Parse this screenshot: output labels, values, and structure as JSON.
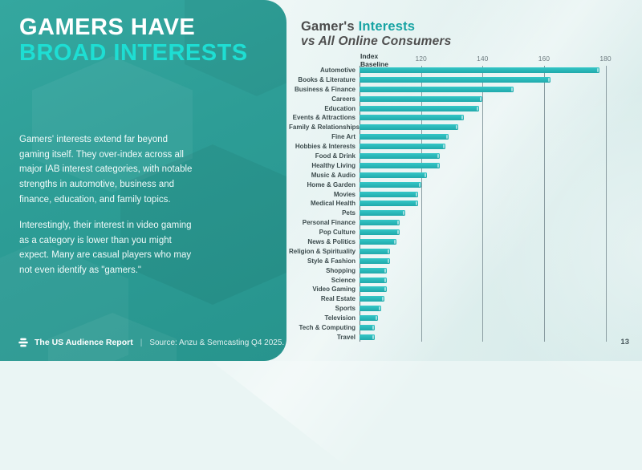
{
  "slide": {
    "page_number": "13"
  },
  "left_panel": {
    "title_line1": "GAMERS HAVE",
    "title_line2": "BROAD INTERESTS",
    "paragraph1": "Gamers' interests extend far beyond gaming itself. They over-index across all major IAB interest categories, with notable strengths in automotive, business and finance, education, and family topics.",
    "paragraph2": "Interestingly, their interest in video gaming as a category is lower than you might expect. Many are casual players who may not even identify as \"gamers.\"",
    "footer": {
      "logo_icon": "anzu-logo",
      "report_name": "The US Audience Report",
      "separator": "|",
      "source_text": "Source: Anzu & Semcasting Q4 2025."
    },
    "colors": {
      "panel_teal": "#2D9D96",
      "accent_cyan": "#1EDED3"
    }
  },
  "chart": {
    "title_part1": "Gamer's",
    "title_part2": "Interests",
    "subtitle": "vs All Online Consumers",
    "axis_header_line1": "Index",
    "axis_header_line2": "Baseline"
  },
  "chart_data": {
    "type": "bar",
    "orientation": "horizontal",
    "title": "Gamer's Interests vs All Online Consumers",
    "xlabel": "Index Baseline",
    "axis_range": [
      100,
      189
    ],
    "axis_ticks": [
      120,
      140,
      160,
      180
    ],
    "grid": true,
    "bar_color": "#2ABEBE",
    "categories": [
      "Automotive",
      "Books & Literature",
      "Business & Finance",
      "Careers",
      "Education",
      "Events & Attractions",
      "Family & Relationships",
      "Fine Art",
      "Hobbies & Interests",
      "Food & Drink",
      "Healthy Living",
      "Music & Audio",
      "Home & Garden",
      "Movies",
      "Medical Health",
      "Pets",
      "Personal Finance",
      "Pop Culture",
      "News & Politics",
      "Religion & Spirituality",
      "Style & Fashion",
      "Shopping",
      "Science",
      "Video Gaming",
      "Real Estate",
      "Sports",
      "Television",
      "Tech & Computing",
      "Travel"
    ],
    "values": [
      178,
      162,
      150,
      140,
      139,
      134,
      132,
      129,
      128,
      126,
      126,
      122,
      120,
      119,
      119,
      115,
      113,
      113,
      112,
      110,
      110,
      109,
      109,
      109,
      108,
      107,
      106,
      105,
      105
    ]
  }
}
